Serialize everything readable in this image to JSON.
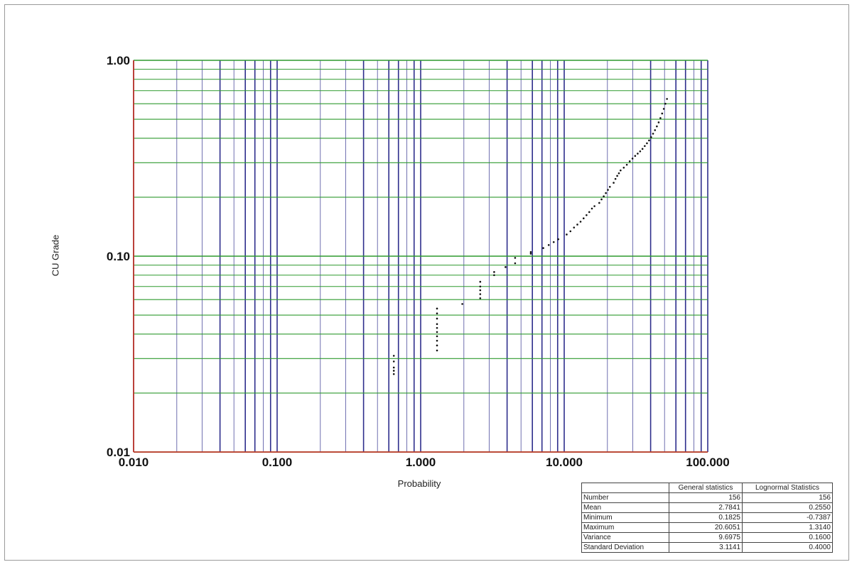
{
  "chart_data": {
    "type": "scatter",
    "xlabel": "Probability",
    "ylabel": "CU Grade",
    "x_scale": "log",
    "y_scale": "log",
    "xlim": [
      0.01,
      100
    ],
    "ylim": [
      0.01,
      1
    ],
    "x_tick_labels": [
      "0.010",
      "0.100",
      "1.000",
      "10.000",
      "100.000"
    ],
    "y_tick_labels": [
      "0.01",
      "0.10",
      "1.00"
    ],
    "grid": true,
    "colors": {
      "vertical_grid": "#2e2e8c",
      "horizontal_grid": "#2f9a2f",
      "axis": "#c0392b",
      "points": "#111111"
    },
    "points": [
      {
        "x": 0.65,
        "y": 0.025
      },
      {
        "x": 0.65,
        "y": 0.026
      },
      {
        "x": 0.65,
        "y": 0.027
      },
      {
        "x": 0.65,
        "y": 0.029
      },
      {
        "x": 0.65,
        "y": 0.031
      },
      {
        "x": 1.3,
        "y": 0.033
      },
      {
        "x": 1.3,
        "y": 0.035
      },
      {
        "x": 1.3,
        "y": 0.037
      },
      {
        "x": 1.3,
        "y": 0.039
      },
      {
        "x": 1.3,
        "y": 0.041
      },
      {
        "x": 1.3,
        "y": 0.043
      },
      {
        "x": 1.3,
        "y": 0.045
      },
      {
        "x": 1.3,
        "y": 0.048
      },
      {
        "x": 1.3,
        "y": 0.051
      },
      {
        "x": 1.3,
        "y": 0.054
      },
      {
        "x": 1.95,
        "y": 0.057
      },
      {
        "x": 2.6,
        "y": 0.061
      },
      {
        "x": 2.6,
        "y": 0.064
      },
      {
        "x": 2.6,
        "y": 0.067
      },
      {
        "x": 2.6,
        "y": 0.07
      },
      {
        "x": 2.6,
        "y": 0.074
      },
      {
        "x": 3.25,
        "y": 0.08
      },
      {
        "x": 3.25,
        "y": 0.083
      },
      {
        "x": 3.9,
        "y": 0.088
      },
      {
        "x": 4.55,
        "y": 0.092
      },
      {
        "x": 4.55,
        "y": 0.098
      },
      {
        "x": 5.85,
        "y": 0.103
      },
      {
        "x": 5.85,
        "y": 0.105
      },
      {
        "x": 7.15,
        "y": 0.11
      },
      {
        "x": 7.8,
        "y": 0.114
      },
      {
        "x": 8.45,
        "y": 0.118
      },
      {
        "x": 9.1,
        "y": 0.122
      },
      {
        "x": 10.4,
        "y": 0.129
      },
      {
        "x": 11.05,
        "y": 0.134
      },
      {
        "x": 11.7,
        "y": 0.14
      },
      {
        "x": 12.35,
        "y": 0.145
      },
      {
        "x": 13.0,
        "y": 0.15
      },
      {
        "x": 13.65,
        "y": 0.156
      },
      {
        "x": 14.3,
        "y": 0.162
      },
      {
        "x": 14.95,
        "y": 0.168
      },
      {
        "x": 15.6,
        "y": 0.175
      },
      {
        "x": 16.25,
        "y": 0.18
      },
      {
        "x": 17.55,
        "y": 0.187
      },
      {
        "x": 18.2,
        "y": 0.195
      },
      {
        "x": 18.85,
        "y": 0.202
      },
      {
        "x": 19.5,
        "y": 0.21
      },
      {
        "x": 20.15,
        "y": 0.218
      },
      {
        "x": 20.8,
        "y": 0.226
      },
      {
        "x": 22.1,
        "y": 0.237
      },
      {
        "x": 22.75,
        "y": 0.248
      },
      {
        "x": 23.4,
        "y": 0.257
      },
      {
        "x": 24.05,
        "y": 0.265
      },
      {
        "x": 24.7,
        "y": 0.274
      },
      {
        "x": 26.0,
        "y": 0.283
      },
      {
        "x": 27.3,
        "y": 0.293
      },
      {
        "x": 28.6,
        "y": 0.305
      },
      {
        "x": 29.9,
        "y": 0.315
      },
      {
        "x": 31.2,
        "y": 0.325
      },
      {
        "x": 32.5,
        "y": 0.334
      },
      {
        "x": 33.8,
        "y": 0.343
      },
      {
        "x": 35.1,
        "y": 0.353
      },
      {
        "x": 36.4,
        "y": 0.365
      },
      {
        "x": 37.7,
        "y": 0.377
      },
      {
        "x": 39.0,
        "y": 0.39
      },
      {
        "x": 40.3,
        "y": 0.405
      },
      {
        "x": 41.6,
        "y": 0.422
      },
      {
        "x": 42.9,
        "y": 0.44
      },
      {
        "x": 44.2,
        "y": 0.46
      },
      {
        "x": 45.5,
        "y": 0.482
      },
      {
        "x": 46.8,
        "y": 0.507
      },
      {
        "x": 48.1,
        "y": 0.535
      },
      {
        "x": 49.4,
        "y": 0.565
      },
      {
        "x": 50.7,
        "y": 0.6
      },
      {
        "x": 52.0,
        "y": 0.635
      }
    ]
  },
  "stats_table": {
    "columns": [
      "",
      "General statistics",
      "Lognormal Statistics"
    ],
    "rows": [
      {
        "label": "Number",
        "general": "156",
        "lognormal": "156"
      },
      {
        "label": "Mean",
        "general": "2.7841",
        "lognormal": "0.2550"
      },
      {
        "label": "Minimum",
        "general": "0.1825",
        "lognormal": "-0.7387"
      },
      {
        "label": "Maximum",
        "general": "20.6051",
        "lognormal": "1.3140"
      },
      {
        "label": "Variance",
        "general": "9.6975",
        "lognormal": "0.1600"
      },
      {
        "label": "Standard Deviation",
        "general": "3.1141",
        "lognormal": "0.4000"
      }
    ]
  }
}
